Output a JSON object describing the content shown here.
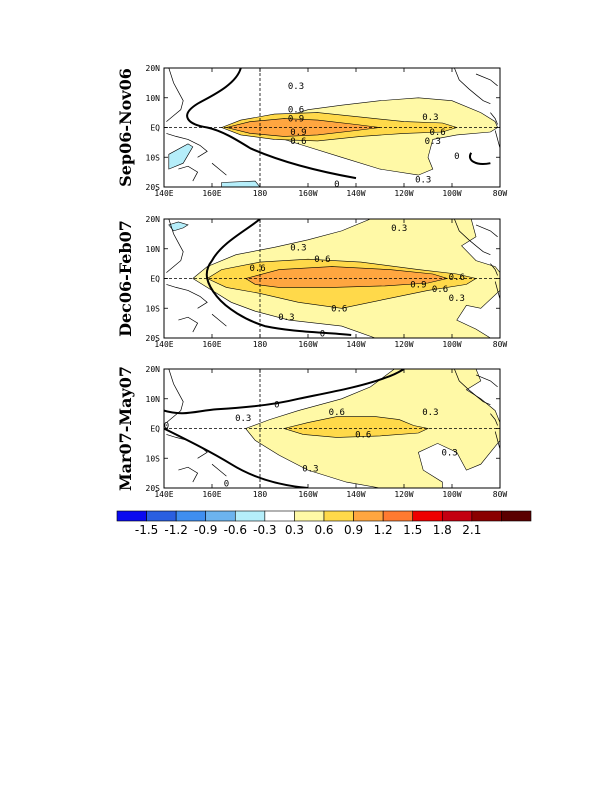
{
  "chart_data": {
    "type": "contour-map",
    "x_ticks": [
      "140E",
      "160E",
      "180",
      "160W",
      "140W",
      "120W",
      "100W",
      "80W"
    ],
    "y_ticks": [
      "20N",
      "10N",
      "EQ",
      "10S",
      "20S"
    ],
    "xlim_deg_east": [
      140,
      280
    ],
    "ylim_deg_north": [
      -20,
      20
    ],
    "reference_lines": [
      "EQ",
      "180"
    ],
    "panels": [
      {
        "title": "Sep06-Nov06",
        "contour_labels": [
          {
            "text": "0.3",
            "lon": 195,
            "lat": 14
          },
          {
            "text": "0.6",
            "lon": 195,
            "lat": 6
          },
          {
            "text": "0.9",
            "lon": 195,
            "lat": 3
          },
          {
            "text": "0.9",
            "lon": 196,
            "lat": -1.5
          },
          {
            "text": "0.6",
            "lon": 196,
            "lat": -4.5
          },
          {
            "text": "0.3",
            "lon": 251,
            "lat": 3.5
          },
          {
            "text": "0.6",
            "lon": 254,
            "lat": -1.5
          },
          {
            "text": "0.3",
            "lon": 252,
            "lat": -4.5
          },
          {
            "text": "0.3",
            "lon": 248,
            "lat": -17.5
          },
          {
            "text": "0",
            "lon": 262,
            "lat": -9.5
          },
          {
            "text": "0",
            "lon": 212,
            "lat": -19
          }
        ],
        "shaded_levels": [
          -0.3,
          0.3,
          0.6,
          0.9
        ]
      },
      {
        "title": "Dec06-Feb07",
        "contour_labels": [
          {
            "text": "0.3",
            "lon": 238,
            "lat": 17
          },
          {
            "text": "0.3",
            "lon": 196,
            "lat": 10.5
          },
          {
            "text": "0.6",
            "lon": 206,
            "lat": 6.5
          },
          {
            "text": "0.6",
            "lon": 179,
            "lat": 3.5
          },
          {
            "text": "0.9",
            "lon": 246,
            "lat": -2
          },
          {
            "text": "0.6",
            "lon": 262,
            "lat": 0.5
          },
          {
            "text": "0.6",
            "lon": 255,
            "lat": -3.5
          },
          {
            "text": "0.3",
            "lon": 262,
            "lat": -6.5
          },
          {
            "text": "0.6",
            "lon": 213,
            "lat": -10
          },
          {
            "text": "0.3",
            "lon": 191,
            "lat": -13
          },
          {
            "text": "0",
            "lon": 206,
            "lat": -18.5
          }
        ],
        "shaded_levels": [
          -0.3,
          0.3,
          0.6,
          0.9
        ]
      },
      {
        "title": "Mar07-May07",
        "contour_labels": [
          {
            "text": "0",
            "lon": 187,
            "lat": 8
          },
          {
            "text": "0.3",
            "lon": 173,
            "lat": 3.5
          },
          {
            "text": "0.6",
            "lon": 212,
            "lat": 5.5
          },
          {
            "text": "0.3",
            "lon": 251,
            "lat": 5.5
          },
          {
            "text": "0.6",
            "lon": 223,
            "lat": -2
          },
          {
            "text": "0",
            "lon": 141,
            "lat": 1
          },
          {
            "text": "0.3",
            "lon": 259,
            "lat": -8
          },
          {
            "text": "0.3",
            "lon": 201,
            "lat": -13.5
          },
          {
            "text": "0",
            "lon": 166,
            "lat": -18.5
          }
        ],
        "shaded_levels": [
          0.3,
          0.6
        ]
      }
    ],
    "colorbar": {
      "levels": [
        "-1.5",
        "-1.2",
        "-0.9",
        "-0.6",
        "-0.3",
        "0.3",
        "0.6",
        "0.9",
        "1.2",
        "1.5",
        "1.8",
        "2.1"
      ],
      "colors": [
        "#0a0af0",
        "#2a5fe0",
        "#3f8ef0",
        "#6cb3ee",
        "#b5eefa",
        "#ffffff",
        "#fff9a6",
        "#ffd94a",
        "#ffa640",
        "#ff7a30",
        "#ee0000",
        "#c40010",
        "#8a0000",
        "#5a0000"
      ]
    }
  }
}
